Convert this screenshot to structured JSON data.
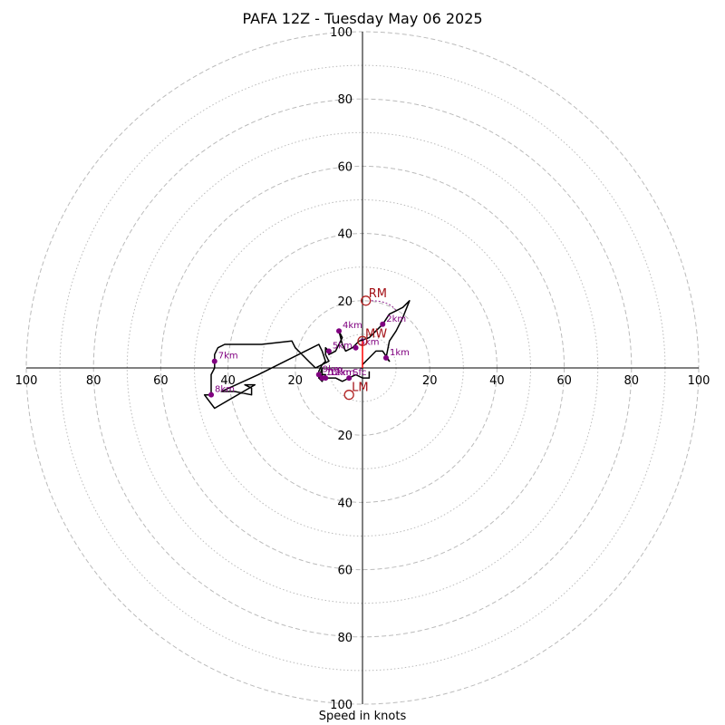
{
  "chart_data": {
    "type": "line",
    "title": "PAFA 12Z - Tuesday May 06 2025",
    "xlabel": "Speed in knots",
    "ylabel": "",
    "xlim": [
      -100,
      100
    ],
    "ylim": [
      -100,
      100
    ],
    "ring_major_step": 20,
    "ring_minor_step": 10,
    "tick_values": [
      100,
      80,
      60,
      40,
      20
    ],
    "colors": {
      "trace": "#000000",
      "height_marker": "#800080",
      "motion": "#b22222",
      "shear_vector": "#ff0000",
      "ring": "#bbbbbb"
    },
    "series": [
      {
        "points": [
          [
            0,
            1
          ],
          [
            2,
            3
          ],
          [
            4,
            5
          ],
          [
            6,
            5
          ],
          [
            8,
            2
          ],
          [
            7,
            3
          ],
          [
            8,
            8
          ],
          [
            10,
            11
          ],
          [
            12,
            15
          ],
          [
            14,
            20
          ],
          [
            12,
            18
          ],
          [
            10,
            17
          ],
          [
            8,
            16
          ],
          [
            6,
            13
          ],
          [
            4,
            11
          ],
          [
            2,
            9
          ],
          [
            -1,
            8
          ],
          [
            -3,
            6
          ],
          [
            -5,
            5
          ],
          [
            -6,
            7
          ],
          [
            -7,
            11
          ],
          [
            -6,
            9
          ],
          [
            -8,
            5
          ],
          [
            -10,
            4
          ],
          [
            -10,
            5
          ],
          [
            -11,
            6
          ],
          [
            -11,
            4
          ],
          [
            -10,
            2
          ],
          [
            -12,
            1
          ],
          [
            -14,
            0
          ],
          [
            -16,
            2
          ],
          [
            -17,
            3
          ],
          [
            -20,
            6
          ],
          [
            -21,
            8
          ],
          [
            -30,
            7
          ],
          [
            -36,
            7
          ],
          [
            -41,
            7
          ],
          [
            -43,
            6
          ],
          [
            -44,
            4
          ],
          [
            -44,
            2
          ],
          [
            -44,
            0
          ],
          [
            -45,
            -2
          ],
          [
            -45,
            -4
          ],
          [
            -45,
            -6
          ],
          [
            -45,
            -8
          ],
          [
            -47,
            -8
          ],
          [
            -44,
            -12
          ],
          [
            -32,
            -5
          ],
          [
            -35,
            -5
          ],
          [
            -33,
            -6
          ],
          [
            -33,
            -8
          ],
          [
            -38,
            -7
          ],
          [
            -42,
            -7
          ],
          [
            -31,
            -2
          ],
          [
            -23,
            2
          ],
          [
            -13,
            7
          ],
          [
            -12,
            5
          ],
          [
            -11,
            2
          ],
          [
            -12,
            1
          ],
          [
            -13,
            -1
          ],
          [
            -13,
            -3
          ],
          [
            -12,
            -2
          ],
          [
            -11,
            -2
          ],
          [
            -12,
            -4
          ],
          [
            -13,
            -3
          ],
          [
            -12,
            0
          ],
          [
            -12,
            -3
          ],
          [
            -10,
            -3
          ],
          [
            -8,
            -3
          ],
          [
            -6,
            -4
          ],
          [
            -4,
            -3
          ],
          [
            -2,
            -2
          ],
          [
            0,
            -3
          ],
          [
            2,
            -3
          ],
          [
            2,
            -1
          ]
        ]
      }
    ],
    "height_markers": [
      {
        "label": "1km",
        "u": 7,
        "v": 3
      },
      {
        "label": "2km",
        "u": 6,
        "v": 13
      },
      {
        "label": "3km",
        "u": -2,
        "v": 6
      },
      {
        "label": "4km",
        "u": -7,
        "v": 11
      },
      {
        "label": "5km",
        "u": -10,
        "v": 5
      },
      {
        "label": "7km",
        "u": -44,
        "v": 2
      },
      {
        "label": "8km",
        "u": -45,
        "v": -8
      },
      {
        "label": "9km",
        "u": -13,
        "v": -2
      },
      {
        "label": "10km",
        "u": -12,
        "v": -3
      },
      {
        "label": "12km",
        "u": -11,
        "v": -3
      },
      {
        "label": "Sfc",
        "u": -4,
        "v": -3
      }
    ],
    "storm_motion": [
      {
        "label": "RM",
        "u": 1,
        "v": 20
      },
      {
        "label": "MW",
        "u": 0,
        "v": 8
      },
      {
        "label": "LM",
        "u": -4,
        "v": -8
      }
    ]
  }
}
